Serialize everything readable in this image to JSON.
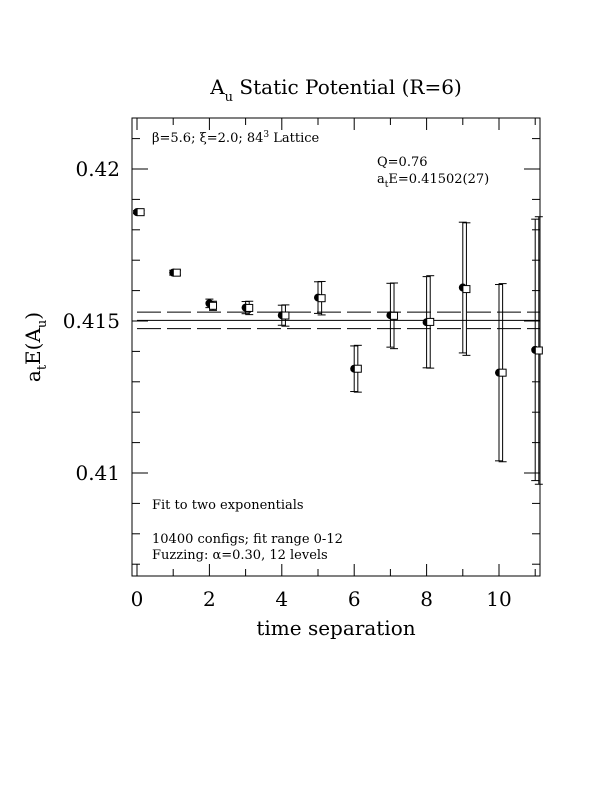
{
  "chart_data": {
    "type": "scatter",
    "title": "A",
    "title_sub": "u",
    "title_rest": " Static Potential (R=6)",
    "xlabel": "time separation",
    "ylabel_prefix": "a",
    "ylabel_t": "t",
    "ylabel_mid": "E(A",
    "ylabel_u": "u",
    "ylabel_end": ")",
    "xlim": [
      0,
      11
    ],
    "ylim": [
      0.4067,
      0.4219
    ],
    "x_ticks": [
      {
        "v": 0,
        "label": "0"
      },
      {
        "v": 2,
        "label": "2"
      },
      {
        "v": 4,
        "label": "4"
      },
      {
        "v": 6,
        "label": "6"
      },
      {
        "v": 8,
        "label": "8"
      },
      {
        "v": 10,
        "label": "10"
      }
    ],
    "y_ticks": [
      {
        "v": 0.41,
        "label": "0.41"
      },
      {
        "v": 0.415,
        "label": "0.415"
      },
      {
        "v": 0.42,
        "label": "0.42"
      }
    ],
    "grid": false,
    "fit": {
      "value": 0.41502,
      "error": 0.00027,
      "x_range": [
        0,
        11
      ]
    },
    "series": [
      {
        "marker": "filled-circle",
        "points": [
          {
            "x": 0,
            "y": 0.41858,
            "err": 5e-05
          },
          {
            "x": 1,
            "y": 0.41659,
            "err": 8e-05
          },
          {
            "x": 2,
            "y": 0.41558,
            "err": 0.00014
          },
          {
            "x": 3,
            "y": 0.41544,
            "err": 0.0002
          },
          {
            "x": 4,
            "y": 0.41519,
            "err": 0.00033
          },
          {
            "x": 5,
            "y": 0.41577,
            "err": 0.00052
          },
          {
            "x": 6,
            "y": 0.41343,
            "err": 0.00075
          },
          {
            "x": 7,
            "y": 0.41519,
            "err": 0.00105
          },
          {
            "x": 8,
            "y": 0.41496,
            "err": 0.0015
          },
          {
            "x": 9,
            "y": 0.4161,
            "err": 0.00215
          },
          {
            "x": 10,
            "y": 0.4133,
            "err": 0.0029
          },
          {
            "x": 11,
            "y": 0.41405,
            "err": 0.0043
          }
        ]
      },
      {
        "marker": "open-square",
        "x_offset": 0.1,
        "points": [
          {
            "x": 0,
            "y": 0.41858,
            "err": 5e-05
          },
          {
            "x": 1,
            "y": 0.41659,
            "err": 8e-05
          },
          {
            "x": 2,
            "y": 0.4155,
            "err": 0.00015
          },
          {
            "x": 3,
            "y": 0.41543,
            "err": 0.00022
          },
          {
            "x": 4,
            "y": 0.41518,
            "err": 0.00035
          },
          {
            "x": 5,
            "y": 0.41575,
            "err": 0.00055
          },
          {
            "x": 6,
            "y": 0.41343,
            "err": 0.00077
          },
          {
            "x": 7,
            "y": 0.41517,
            "err": 0.00108
          },
          {
            "x": 8,
            "y": 0.41497,
            "err": 0.00152
          },
          {
            "x": 9,
            "y": 0.41605,
            "err": 0.00218
          },
          {
            "x": 10,
            "y": 0.4133,
            "err": 0.00293
          },
          {
            "x": 11,
            "y": 0.41403,
            "err": 0.0044
          }
        ]
      }
    ],
    "annotations": {
      "lattice_beta": "β=5.6; ",
      "lattice_xi": "ξ=2.0; 84",
      "lattice_sup": "3",
      "lattice_end": " Lattice",
      "q_value": "Q=0.76",
      "energy_a": "a",
      "energy_t": "t",
      "energy_rest": "E=0.41502(27)",
      "fit_note": "Fit to two exponentials",
      "configs": "10400 configs; fit range 0-12",
      "fuzzing": "Fuzzing: α=0.30, 12 levels"
    }
  }
}
